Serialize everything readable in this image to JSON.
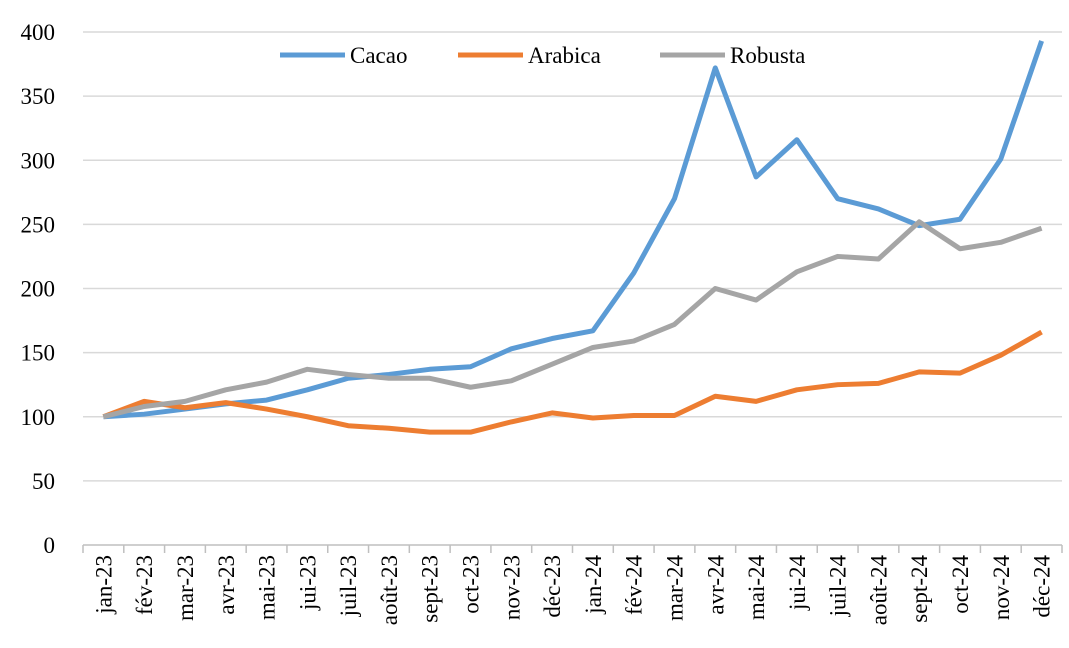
{
  "chart_data": {
    "type": "line",
    "categories": [
      "jan-23",
      "fév-23",
      "mar-23",
      "avr-23",
      "mai-23",
      "jui-23",
      "juil-23",
      "août-23",
      "sept-23",
      "oct-23",
      "nov-23",
      "déc-23",
      "jan-24",
      "fév-24",
      "mar-24",
      "avr-24",
      "mai-24",
      "jui-24",
      "juil-24",
      "août-24",
      "sept-24",
      "oct-24",
      "nov-24",
      "déc-24"
    ],
    "series": [
      {
        "name": "Cacao",
        "color": "#5b9bd5",
        "values": [
          100,
          102,
          106,
          110,
          113,
          121,
          130,
          133,
          137,
          139,
          153,
          161,
          167,
          212,
          270,
          372,
          287,
          316,
          270,
          262,
          249,
          254,
          301,
          393
        ]
      },
      {
        "name": "Arabica",
        "color": "#ed7d31",
        "values": [
          100,
          112,
          107,
          111,
          106,
          100,
          93,
          91,
          88,
          88,
          96,
          103,
          99,
          101,
          101,
          116,
          112,
          121,
          125,
          126,
          135,
          134,
          148,
          166
        ]
      },
      {
        "name": "Robusta",
        "color": "#a5a5a5",
        "values": [
          100,
          108,
          112,
          121,
          127,
          137,
          133,
          130,
          130,
          123,
          128,
          141,
          154,
          159,
          172,
          200,
          191,
          213,
          225,
          223,
          252,
          231,
          236,
          247
        ]
      }
    ],
    "ylim": [
      0,
      400
    ],
    "yticks": [
      0,
      50,
      100,
      150,
      200,
      250,
      300,
      350,
      400
    ],
    "grid": true,
    "legend": "top"
  }
}
